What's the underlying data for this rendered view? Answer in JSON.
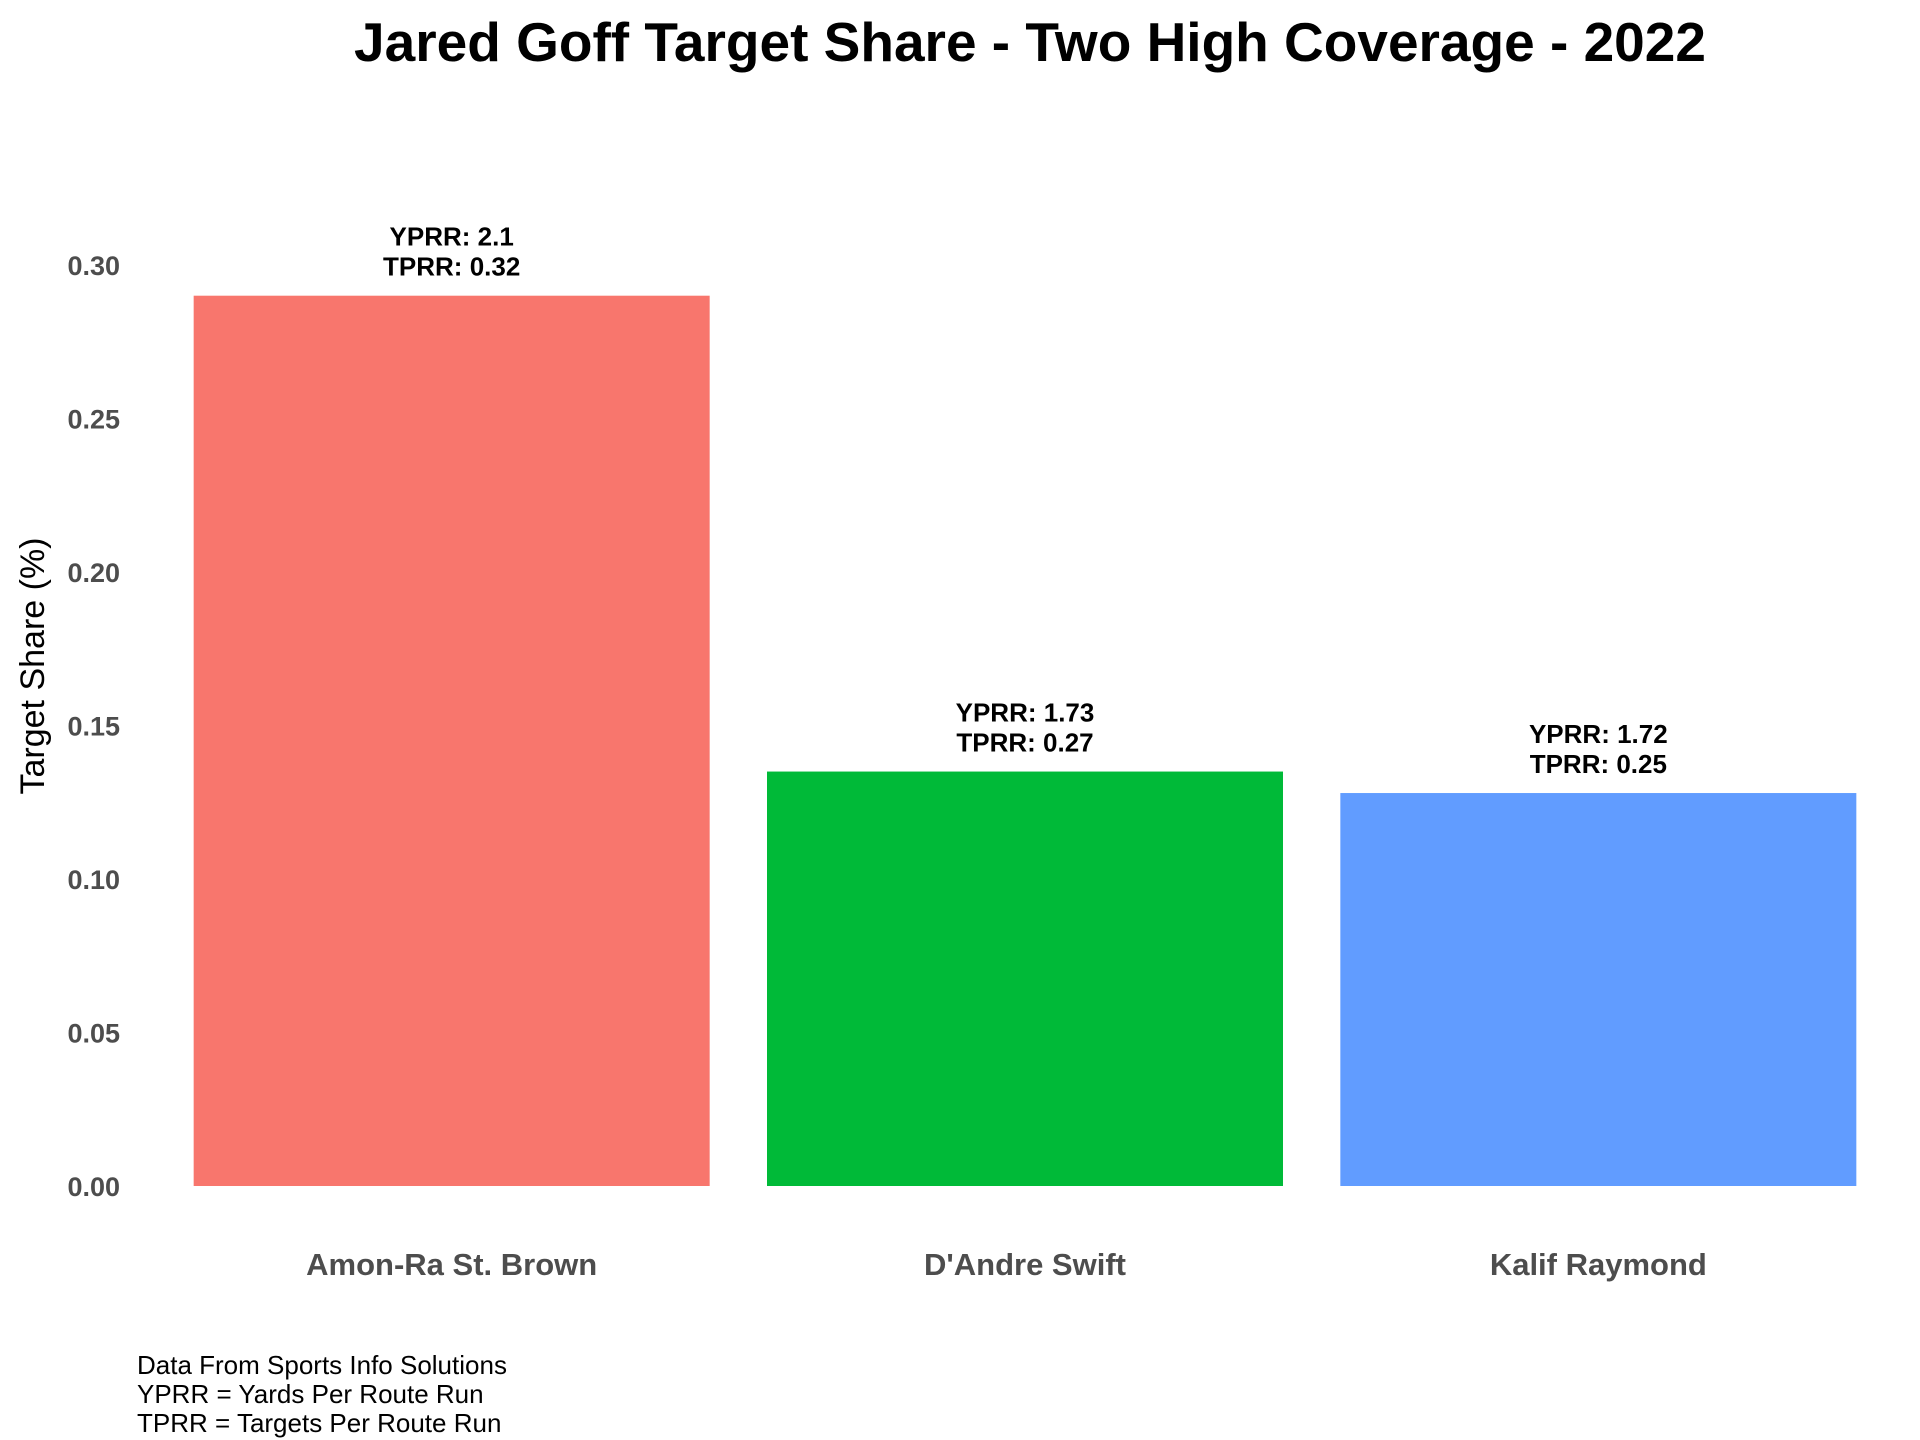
{
  "chart_data": {
    "type": "bar",
    "title": "Jared Goff Target Share - Two High Coverage - 2022",
    "xlabel": "",
    "ylabel": "Target Share (%)",
    "categories": [
      "Amon-Ra St. Brown",
      "D'Andre Swift",
      "Kalif Raymond"
    ],
    "values": [
      0.29,
      0.135,
      0.128
    ],
    "colors": [
      "#F8766D",
      "#00BA38",
      "#619CFF"
    ],
    "bar_labels": [
      [
        "YPRR: 2.1",
        "TPRR: 0.32"
      ],
      [
        "YPRR: 1.73",
        "TPRR: 0.27"
      ],
      [
        "YPRR: 1.72",
        "TPRR: 0.25"
      ]
    ],
    "ylim": [
      0,
      0.3
    ],
    "yticks": [
      "0.00",
      "0.05",
      "0.10",
      "0.15",
      "0.20",
      "0.25",
      "0.30"
    ],
    "grid": false,
    "legend": "none"
  },
  "footnotes": [
    "Data From Sports Info Solutions",
    "YPRR = Yards Per Route Run",
    "TPRR = Targets Per Route Run"
  ]
}
